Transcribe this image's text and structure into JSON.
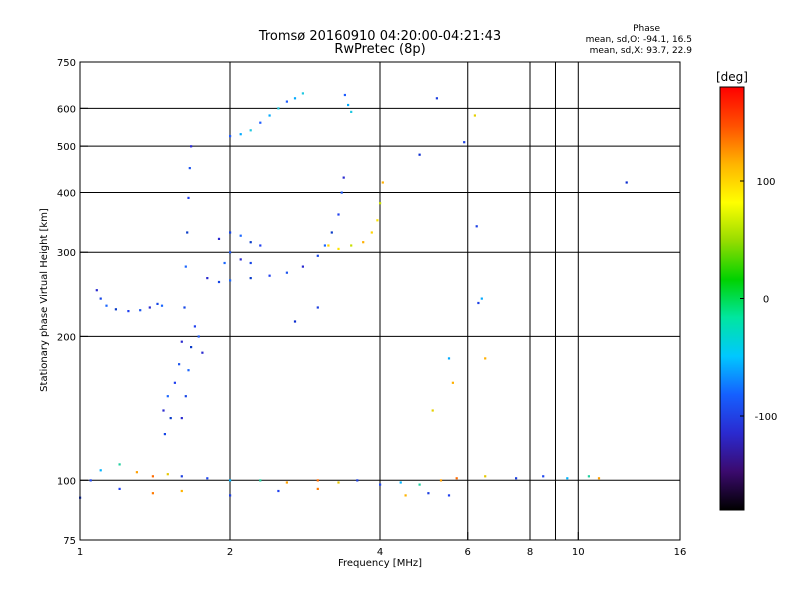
{
  "chart_data": {
    "type": "scatter",
    "title": "Tromsø 20160910 04:20:00-04:21:43",
    "subtitle": "RwPretec (8p)",
    "xlabel": "Frequency [MHz]",
    "ylabel": "Stationary phase Virtual Height [km]",
    "x_scale": "log",
    "y_scale": "log",
    "xlim": [
      1,
      16
    ],
    "ylim": [
      75,
      750
    ],
    "x_ticks": [
      1,
      2,
      4,
      6,
      8,
      10,
      16
    ],
    "x_gridlines": [
      2,
      4,
      6,
      8,
      9,
      10
    ],
    "y_ticks": [
      75,
      100,
      200,
      300,
      400,
      500,
      600,
      750
    ],
    "grid": true,
    "info": {
      "heading": "Phase",
      "line1": "mean, sd,O: -94.1, 16.5",
      "line2": "mean, sd,X:  93.7, 22.9"
    },
    "colorbar": {
      "label": "[deg]",
      "range": [
        -180,
        180
      ],
      "ticks": [
        100,
        0,
        -100
      ],
      "colors": [
        "#000000",
        "#3b0a6e",
        "#2a2ad0",
        "#1560ff",
        "#00c8ff",
        "#00e6a0",
        "#00d200",
        "#96dc00",
        "#ffff00",
        "#ffb400",
        "#ff5000",
        "#ff0000"
      ]
    },
    "series": [
      {
        "points": [
          [
            1.08,
            250
          ],
          [
            1.1,
            240
          ],
          [
            1.13,
            232
          ],
          [
            1.18,
            228
          ],
          [
            1.25,
            226
          ],
          [
            1.32,
            227
          ],
          [
            1.38,
            230
          ],
          [
            1.43,
            234
          ],
          [
            1.46,
            232
          ]
        ]
      },
      {
        "points": [
          [
            1.47,
            140
          ],
          [
            1.48,
            125
          ],
          [
            1.5,
            150
          ],
          [
            1.52,
            135
          ],
          [
            1.55,
            160
          ],
          [
            1.58,
            175
          ],
          [
            1.6,
            195
          ],
          [
            1.62,
            230
          ],
          [
            1.63,
            280
          ],
          [
            1.64,
            330
          ],
          [
            1.65,
            390
          ],
          [
            1.66,
            450
          ],
          [
            1.67,
            500
          ]
        ]
      },
      {
        "points": [
          [
            1.6,
            135
          ],
          [
            1.63,
            150
          ],
          [
            1.65,
            170
          ],
          [
            1.67,
            190
          ],
          [
            1.7,
            210
          ],
          [
            1.73,
            200
          ],
          [
            1.76,
            185
          ]
        ]
      },
      {
        "points": [
          [
            1.8,
            265
          ],
          [
            1.9,
            260
          ],
          [
            2.0,
            262
          ],
          [
            2.2,
            265
          ],
          [
            2.4,
            268
          ],
          [
            2.6,
            272
          ],
          [
            2.8,
            280
          ],
          [
            3.0,
            295
          ],
          [
            3.1,
            310
          ],
          [
            3.2,
            330
          ],
          [
            3.3,
            360
          ],
          [
            3.35,
            400
          ],
          [
            3.38,
            430
          ]
        ]
      },
      {
        "points": [
          [
            1.9,
            320
          ],
          [
            2.0,
            330
          ],
          [
            2.1,
            325
          ],
          [
            2.2,
            315
          ],
          [
            2.3,
            310
          ],
          [
            2.0,
            300
          ],
          [
            2.1,
            290
          ],
          [
            2.2,
            285
          ],
          [
            1.95,
            285
          ]
        ]
      },
      {
        "points": [
          [
            2.0,
            525
          ],
          [
            2.1,
            530
          ],
          [
            2.2,
            540
          ],
          [
            2.3,
            560
          ],
          [
            2.4,
            580
          ],
          [
            2.5,
            600
          ],
          [
            2.6,
            620
          ],
          [
            2.7,
            630
          ],
          [
            2.8,
            645
          ],
          [
            3.4,
            640
          ],
          [
            3.45,
            610
          ],
          [
            3.5,
            590
          ]
        ]
      },
      {
        "points": [
          [
            3.15,
            310
          ],
          [
            3.3,
            305
          ],
          [
            3.5,
            310
          ],
          [
            3.7,
            315
          ],
          [
            3.85,
            330
          ],
          [
            3.95,
            350
          ],
          [
            4.0,
            380
          ],
          [
            4.05,
            420
          ]
        ]
      },
      {
        "points": [
          [
            1.0,
            92
          ],
          [
            1.05,
            100
          ],
          [
            1.1,
            105
          ],
          [
            1.2,
            108
          ],
          [
            1.3,
            104
          ],
          [
            1.4,
            102
          ],
          [
            1.5,
            103
          ],
          [
            1.6,
            102
          ],
          [
            1.8,
            101
          ],
          [
            2.0,
            100
          ],
          [
            2.3,
            100
          ],
          [
            2.6,
            99
          ],
          [
            3.0,
            100
          ],
          [
            3.3,
            99
          ],
          [
            3.6,
            100
          ],
          [
            4.0,
            98
          ],
          [
            4.4,
            99
          ],
          [
            4.8,
            98
          ],
          [
            5.3,
            100
          ],
          [
            5.7,
            101
          ],
          [
            6.5,
            102
          ],
          [
            7.5,
            101
          ],
          [
            8.5,
            102
          ],
          [
            9.5,
            101
          ],
          [
            10.5,
            102
          ],
          [
            11.0,
            101
          ]
        ]
      },
      {
        "points": [
          [
            1.2,
            96
          ],
          [
            1.4,
            94
          ],
          [
            1.6,
            95
          ],
          [
            2.0,
            93
          ],
          [
            2.5,
            95
          ],
          [
            3.0,
            96
          ],
          [
            4.5,
            93
          ],
          [
            5.0,
            94
          ],
          [
            5.5,
            93
          ]
        ]
      },
      {
        "points": [
          [
            6.3,
            235
          ],
          [
            6.5,
            180
          ],
          [
            6.4,
            240
          ],
          [
            6.2,
            580
          ],
          [
            6.25,
            340
          ],
          [
            5.6,
            160
          ],
          [
            5.5,
            180
          ],
          [
            5.1,
            140
          ]
        ]
      },
      {
        "points": [
          [
            5.2,
            630
          ],
          [
            4.8,
            480
          ],
          [
            5.9,
            510
          ],
          [
            12.5,
            420
          ],
          [
            3.0,
            230
          ],
          [
            2.7,
            215
          ]
        ]
      }
    ]
  }
}
